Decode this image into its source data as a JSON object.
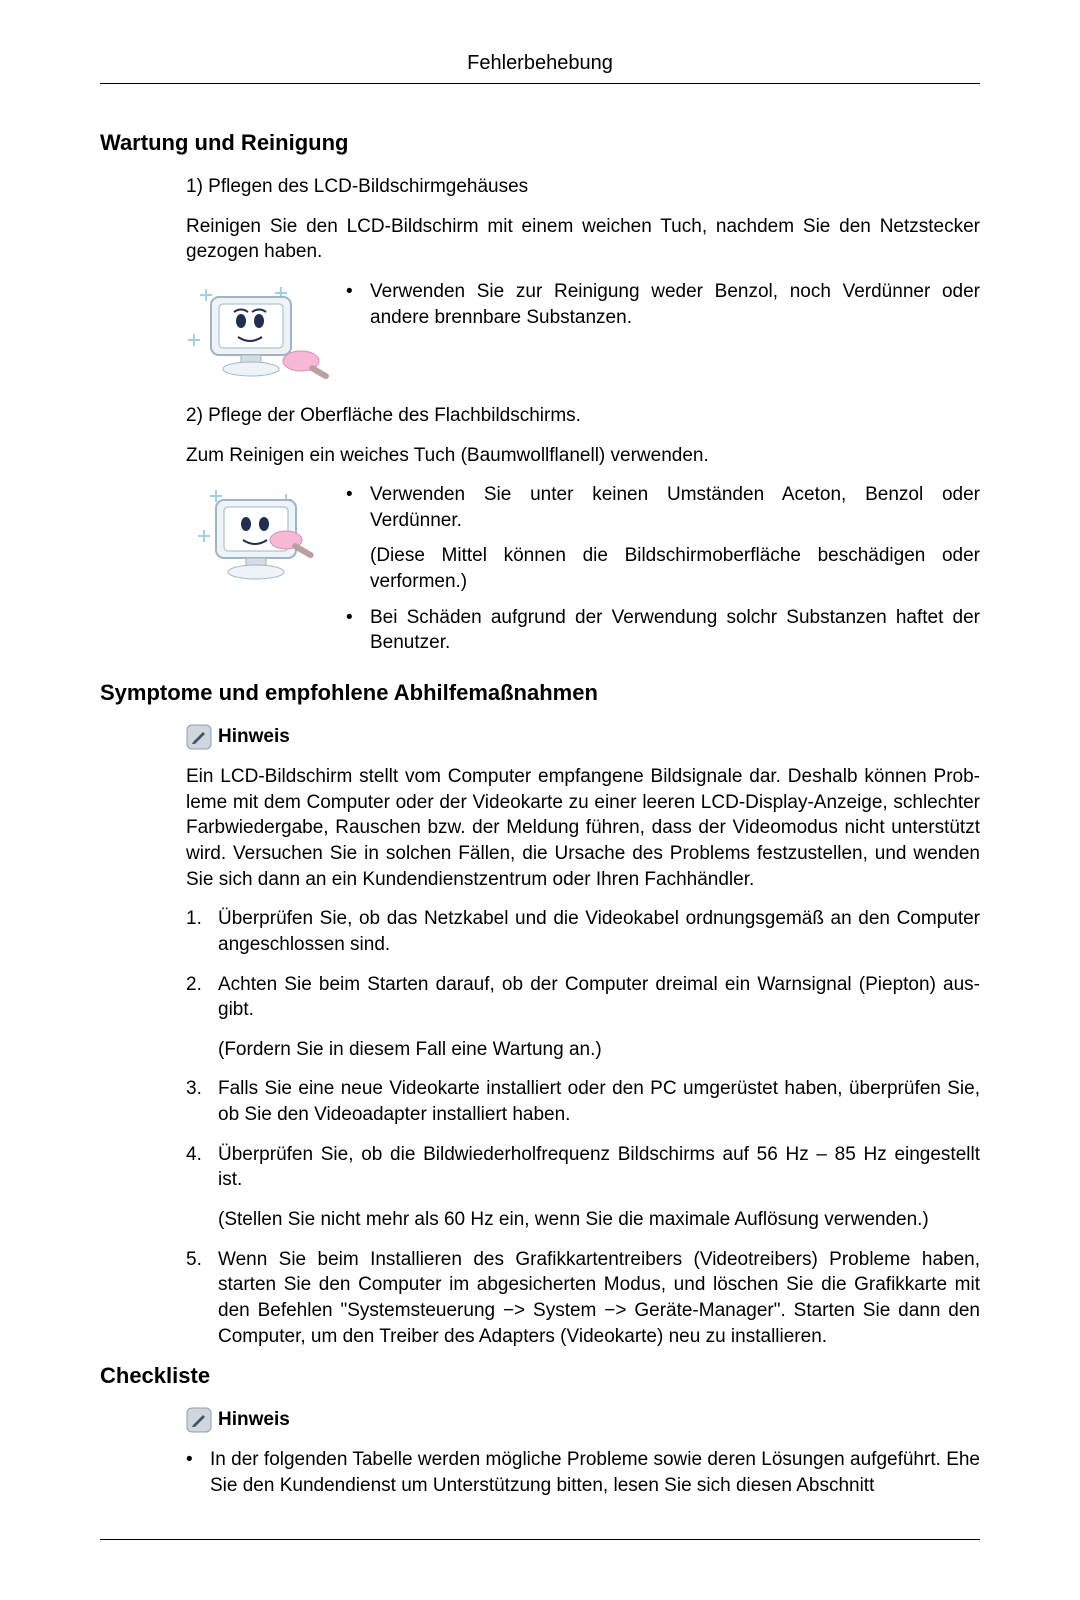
{
  "header_title": "Fehlerbehebung",
  "section1": {
    "heading": "Wartung und Reinigung",
    "p1_label": "1) Pflegen des LCD-Bildschirmgehäuses",
    "p1_text": "Reinigen Sie den LCD-Bildschirm mit einem weichen Tuch, nachdem Sie den Netzstecker gezogen haben.",
    "b1": "Verwenden Sie zur Reinigung weder Benzol, noch Verdünner oder andere brennbare Substanzen.",
    "p2_label": "2) Pflege der Oberfläche des Flachbildschirms.",
    "p2_text": "Zum Reinigen ein weiches Tuch (Baumwollflanell) verwenden.",
    "b2a": "Verwenden Sie unter keinen Umständen Aceton, Benzol oder Verdünner.",
    "b2a_sub": "(Diese Mittel können die Bildschirmoberfläche be­schädigen oder verformen.)",
    "b2b": "Bei Schäden aufgrund der Verwendung solchr Sub­stanzen haftet der Benutzer."
  },
  "section2": {
    "heading": "Symptome und empfohlene Abhilfemaßnahmen",
    "hinweis_label": "Hinweis",
    "intro": "Ein LCD-Bildschirm stellt vom Computer empfangene Bildsignale dar. Deshalb können Prob­leme mit dem Computer oder der Videokarte zu einer leeren LCD-Display-Anzeige, schlecht­er Farbwiedergabe, Rauschen bzw. der Meldung führen, dass der Videomodus nicht unterstützt wird. Versuchen Sie in solchen Fällen, die Ursache des Problems festzustellen, und wenden Sie sich dann an ein Kundendienstzentrum oder Ihren Fachhändler.",
    "items": [
      {
        "n": "1.",
        "t": "Überprüfen Sie, ob das Netzkabel und die Videokabel ordnungsgemäß an den Computer angeschlossen sind.",
        "sub": ""
      },
      {
        "n": "2.",
        "t": "Achten Sie beim Starten darauf, ob der Computer dreimal ein Warnsignal (Piepton) aus­gibt.",
        "sub": "(Fordern Sie in diesem Fall eine Wartung an.)"
      },
      {
        "n": "3.",
        "t": "Falls Sie eine neue Videokarte installiert oder den PC umgerüstet haben, überprüfen Sie, ob Sie den Videoadapter installiert haben.",
        "sub": ""
      },
      {
        "n": "4.",
        "t": "Überprüfen Sie, ob die Bildwiederholfrequenz Bildschirms auf 56 Hz – 85 Hz eingestellt ist.",
        "sub": "(Stellen Sie nicht mehr als 60 Hz ein, wenn Sie die maximale Auflösung verwenden.)"
      },
      {
        "n": "5.",
        "t": "Wenn Sie beim Installieren des Grafikkartentreibers (Videotreibers) Probleme haben, starten Sie den Computer im abgesicherten Modus, und löschen Sie die Grafikkarte mit den Befehlen \"Systemsteuerung −> System −> Geräte-Manager\". Starten Sie dann den Computer, um den Treiber des Adapters (Videokarte) neu zu installieren.",
        "sub": ""
      }
    ]
  },
  "section3": {
    "heading": "Checkliste",
    "hinweis_label": "Hinweis",
    "bullet": "In der folgenden Tabelle werden mögliche Probleme sowie deren Lösungen aufgeführt. Ehe Sie den Kundendienst um Unterstützung bitten, lesen Sie sich diesen Abschnitt"
  },
  "colors": {
    "text": "#000000",
    "bg": "#ffffff",
    "rule": "#000000",
    "icon_bg": "#cfd6dc",
    "icon_stroke": "#3a5a6a",
    "monitor_body": "#eef3f7",
    "monitor_border": "#9fb4c4",
    "face_eye": "#203050",
    "brush_pink": "#f7b8d6",
    "brush_handle": "#bca0a0",
    "sparkle": "#9fd0e8"
  }
}
